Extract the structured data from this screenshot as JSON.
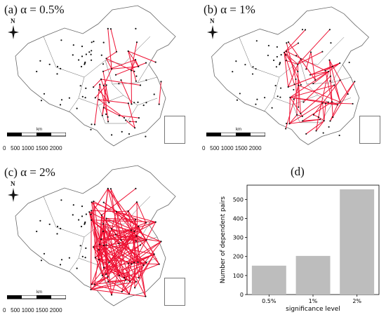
{
  "panels": [
    {
      "label": "(a) α = 0.5%",
      "edge_density": 0.35
    },
    {
      "label": "(b) α = 1%",
      "edge_density": 0.5
    },
    {
      "label": "(c) α = 2%",
      "edge_density": 1.0
    },
    {
      "label": "(d)"
    }
  ],
  "map_common": {
    "north_label": "N",
    "scale_unit": "km",
    "scale_ticks": [
      "0",
      "500",
      "1000",
      "1500",
      "2000"
    ],
    "edge_color": "#ee1133",
    "boundary_color": "#666666",
    "station_color": "#111111"
  },
  "chart_data": {
    "type": "bar",
    "categories": [
      "0.5%",
      "1%",
      "2%"
    ],
    "values": [
      152,
      203,
      553
    ],
    "xlabel": "significance level",
    "ylabel": "Number of dependent pairs",
    "ylim": [
      0,
      575
    ],
    "yticks": [
      0,
      100,
      200,
      300,
      400,
      500
    ],
    "bar_color": "#bdbdbd",
    "grid": false
  }
}
